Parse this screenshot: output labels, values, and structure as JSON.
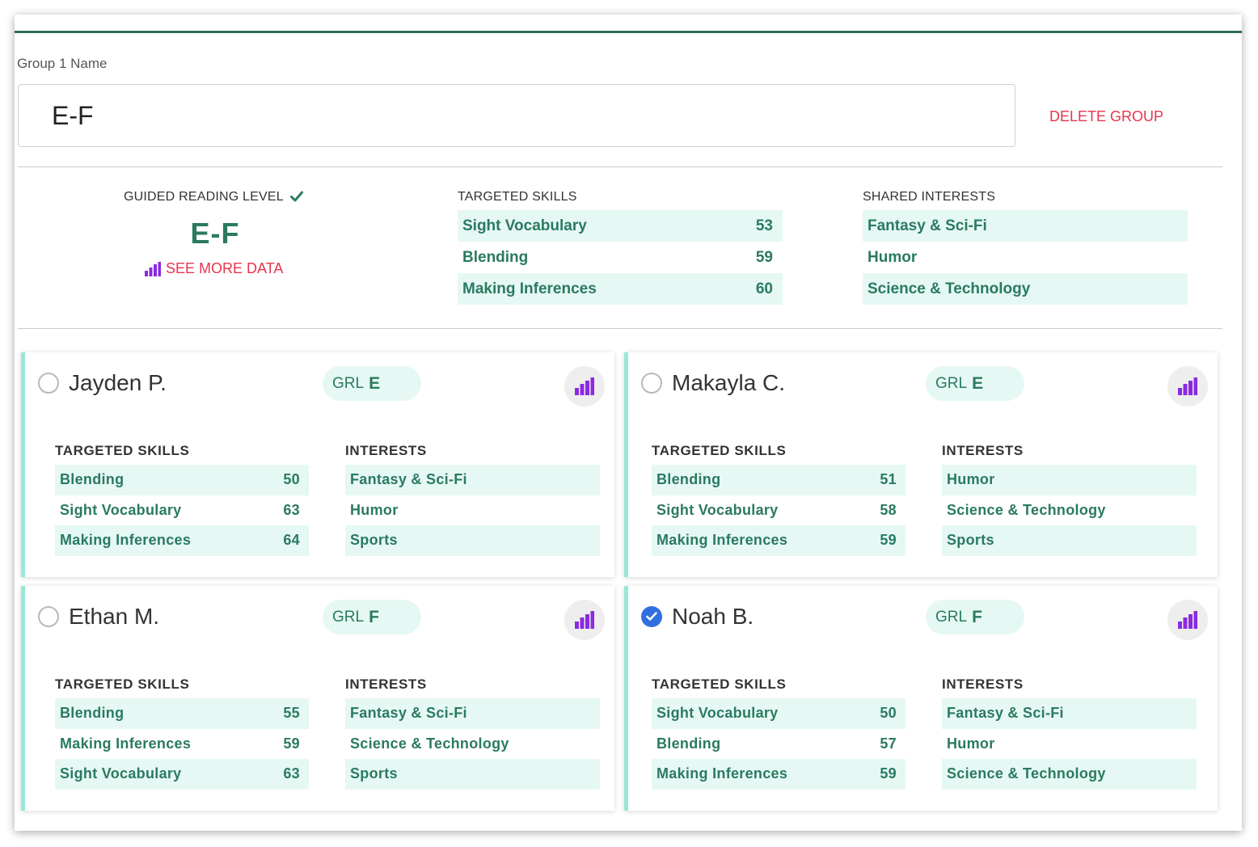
{
  "group": {
    "name_label": "Group 1 Name",
    "name_value": "E-F",
    "delete_label": "DELETE GROUP"
  },
  "summary": {
    "grl_title": "GUIDED READING LEVEL",
    "grl_value": "E-F",
    "see_more": "SEE MORE DATA",
    "skills_title": "TARGETED SKILLS",
    "skills": [
      {
        "name": "Sight Vocabulary",
        "score": "53"
      },
      {
        "name": "Blending",
        "score": "59"
      },
      {
        "name": "Making Inferences",
        "score": "60"
      }
    ],
    "interests_title": "SHARED INTERESTS",
    "interests": [
      "Fantasy & Sci-Fi",
      "Humor",
      "Science & Technology"
    ]
  },
  "colors": {
    "accent_green": "#2a7a62",
    "row_tint": "#e6f8f3",
    "danger_red": "#e8344e",
    "chart_purple": "#8a2be2",
    "check_blue": "#2f6fe0",
    "card_border": "#9be7d6"
  },
  "students": [
    {
      "name": "Jayden P.",
      "selected": false,
      "grl_label": "GRL",
      "grl": "E",
      "skills_title": "TARGETED SKILLS",
      "interests_title": "INTERESTS",
      "skills": [
        {
          "name": "Blending",
          "score": "50"
        },
        {
          "name": "Sight Vocabulary",
          "score": "63"
        },
        {
          "name": "Making Inferences",
          "score": "64"
        }
      ],
      "interests": [
        "Fantasy & Sci-Fi",
        "Humor",
        "Sports"
      ]
    },
    {
      "name": "Makayla C.",
      "selected": false,
      "grl_label": "GRL",
      "grl": "E",
      "skills_title": "TARGETED SKILLS",
      "interests_title": "INTERESTS",
      "skills": [
        {
          "name": "Blending",
          "score": "51"
        },
        {
          "name": "Sight Vocabulary",
          "score": "58"
        },
        {
          "name": "Making Inferences",
          "score": "59"
        }
      ],
      "interests": [
        "Humor",
        "Science & Technology",
        "Sports"
      ]
    },
    {
      "name": "Ethan M.",
      "selected": false,
      "grl_label": "GRL",
      "grl": "F",
      "skills_title": "TARGETED SKILLS",
      "interests_title": "INTERESTS",
      "skills": [
        {
          "name": "Blending",
          "score": "55"
        },
        {
          "name": "Making Inferences",
          "score": "59"
        },
        {
          "name": "Sight Vocabulary",
          "score": "63"
        }
      ],
      "interests": [
        "Fantasy & Sci-Fi",
        "Science & Technology",
        "Sports"
      ]
    },
    {
      "name": "Noah B.",
      "selected": true,
      "grl_label": "GRL",
      "grl": "F",
      "skills_title": "TARGETED SKILLS",
      "interests_title": "INTERESTS",
      "skills": [
        {
          "name": "Sight Vocabulary",
          "score": "50"
        },
        {
          "name": "Blending",
          "score": "57"
        },
        {
          "name": "Making Inferences",
          "score": "59"
        }
      ],
      "interests": [
        "Fantasy & Sci-Fi",
        "Humor",
        "Science & Technology"
      ]
    }
  ]
}
